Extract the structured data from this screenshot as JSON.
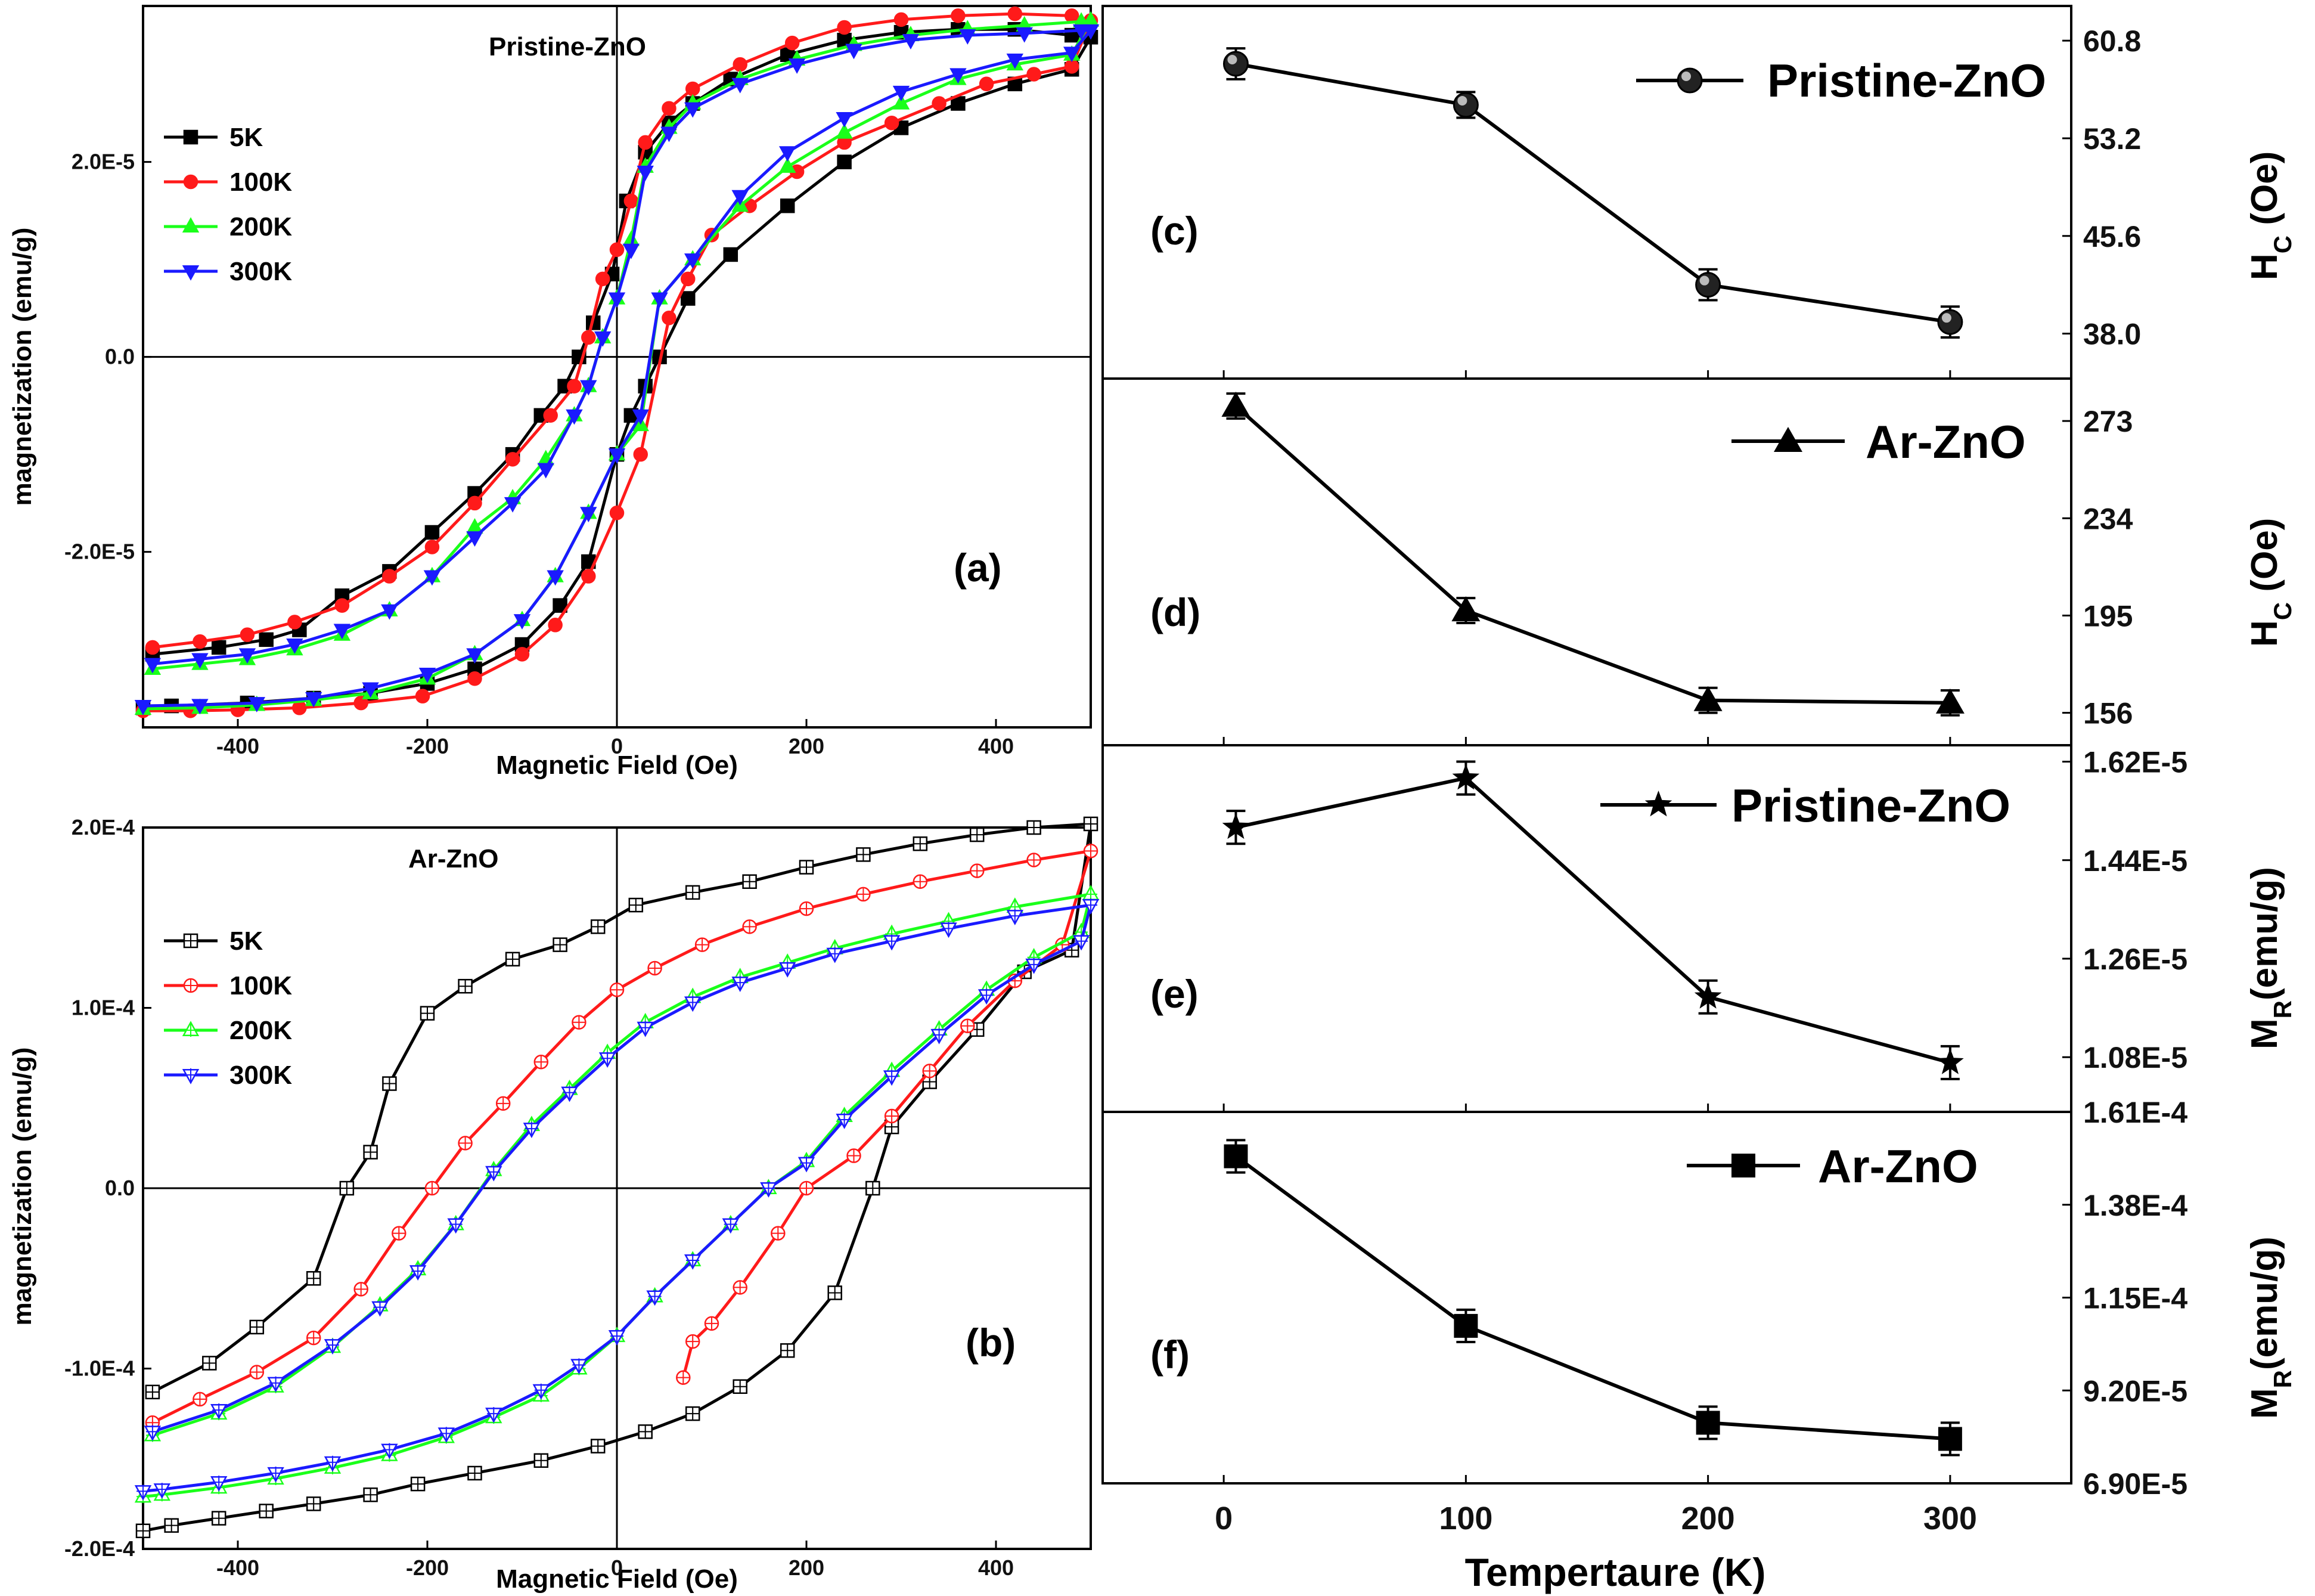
{
  "chart_data": [
    {
      "id": "a",
      "type": "line",
      "panel_label": "(a)",
      "title": "Pristine-ZnO",
      "xlabel": "Magnetic Field (Oe)",
      "ylabel": "magnetization (emu/g)",
      "xlim": [
        -500,
        500
      ],
      "ylim": [
        -3.8e-05,
        3.6e-05
      ],
      "xticks": [
        -400,
        -200,
        0,
        200,
        400
      ],
      "xtick_labels": [
        "-400",
        "-200",
        "0",
        "200",
        "400"
      ],
      "yticks": [
        -2e-05,
        0,
        2e-05
      ],
      "ytick_labels": [
        "-2.0E-5",
        "0.0",
        "2.0E-5"
      ],
      "series": [
        {
          "name": "5K",
          "color": "#000000",
          "marker": "square",
          "x": [
            -490,
            -420,
            -370,
            -335,
            -290,
            -240,
            -195,
            -150,
            -110,
            -80,
            -55,
            -40,
            -25,
            -5,
            10,
            30,
            55,
            80,
            120,
            180,
            240,
            300,
            360,
            420,
            480,
            500,
            480,
            420,
            360,
            300,
            240,
            180,
            120,
            75,
            45,
            30,
            15,
            0,
            -30,
            -60,
            -100,
            -150,
            -200,
            -260,
            -320,
            -390,
            -470,
            -500
          ],
          "y": [
            -3.05e-05,
            -2.98e-05,
            -2.9e-05,
            -2.8e-05,
            -2.45e-05,
            -2.2e-05,
            -1.8e-05,
            -1.4e-05,
            -1e-05,
            -6e-06,
            -3e-06,
            0,
            3.5e-06,
            8.5e-06,
            1.6e-05,
            2.1e-05,
            2.4e-05,
            2.6e-05,
            2.85e-05,
            3.1e-05,
            3.25e-05,
            3.33e-05,
            3.36e-05,
            3.36e-05,
            3.3e-05,
            3.28e-05,
            2.95e-05,
            2.8e-05,
            2.6e-05,
            2.35e-05,
            2e-05,
            1.55e-05,
            1.05e-05,
            6e-06,
            0,
            -3e-06,
            -6e-06,
            -1e-05,
            -2.1e-05,
            -2.55e-05,
            -2.95e-05,
            -3.2e-05,
            -3.35e-05,
            -3.45e-05,
            -3.5e-05,
            -3.55e-05,
            -3.58e-05,
            -3.6e-05
          ]
        },
        {
          "name": "100K",
          "color": "#ff1a1a",
          "marker": "circle",
          "x": [
            -490,
            -440,
            -390,
            -340,
            -290,
            -240,
            -195,
            -150,
            -110,
            -70,
            -45,
            -30,
            -15,
            0,
            15,
            30,
            55,
            80,
            130,
            185,
            240,
            300,
            360,
            420,
            480,
            500,
            480,
            440,
            390,
            340,
            290,
            240,
            190,
            140,
            100,
            75,
            55,
            25,
            0,
            -30,
            -65,
            -100,
            -150,
            -205,
            -270,
            -335,
            -400,
            -450,
            -500
          ],
          "y": [
            -2.98e-05,
            -2.92e-05,
            -2.85e-05,
            -2.72e-05,
            -2.55e-05,
            -2.25e-05,
            -1.95e-05,
            -1.5e-05,
            -1.05e-05,
            -6e-06,
            -3e-06,
            2e-06,
            8e-06,
            1.1e-05,
            1.6e-05,
            2.2e-05,
            2.55e-05,
            2.75e-05,
            3e-05,
            3.22e-05,
            3.38e-05,
            3.46e-05,
            3.5e-05,
            3.52e-05,
            3.5e-05,
            3.45e-05,
            2.98e-05,
            2.9e-05,
            2.8e-05,
            2.6e-05,
            2.4e-05,
            2.2e-05,
            1.9e-05,
            1.55e-05,
            1.25e-05,
            8e-06,
            4e-06,
            -1e-05,
            -1.6e-05,
            -2.25e-05,
            -2.75e-05,
            -3.05e-05,
            -3.3e-05,
            -3.48e-05,
            -3.55e-05,
            -3.6e-05,
            -3.62e-05,
            -3.63e-05,
            -3.63e-05
          ]
        },
        {
          "name": "200K",
          "color": "#1aff1a",
          "marker": "triangle-up",
          "x": [
            -490,
            -440,
            -390,
            -340,
            -290,
            -240,
            -195,
            -150,
            -110,
            -75,
            -45,
            -30,
            -15,
            0,
            15,
            30,
            55,
            80,
            130,
            190,
            250,
            310,
            370,
            430,
            490,
            500,
            480,
            420,
            360,
            300,
            240,
            180,
            130,
            80,
            45,
            25,
            0,
            -30,
            -65,
            -100,
            -150,
            -200,
            -260,
            -320,
            -380,
            -440,
            -500
          ],
          "y": [
            -3.2e-05,
            -3.15e-05,
            -3.1e-05,
            -3e-05,
            -2.85e-05,
            -2.6e-05,
            -2.25e-05,
            -1.75e-05,
            -1.45e-05,
            -1.05e-05,
            -6e-06,
            -3e-06,
            2e-06,
            6e-06,
            1.2e-05,
            1.95e-05,
            2.35e-05,
            2.6e-05,
            2.85e-05,
            3.05e-05,
            3.2e-05,
            3.3e-05,
            3.36e-05,
            3.4e-05,
            3.44e-05,
            3.45e-05,
            3.1e-05,
            3e-05,
            2.85e-05,
            2.6e-05,
            2.3e-05,
            1.95e-05,
            1.55e-05,
            1e-05,
            6e-06,
            -7e-06,
            -1e-05,
            -1.6e-05,
            -2.25e-05,
            -2.7e-05,
            -3.05e-05,
            -3.3e-05,
            -3.45e-05,
            -3.52e-05,
            -3.57e-05,
            -3.6e-05,
            -3.61e-05
          ]
        },
        {
          "name": "300K",
          "color": "#1a1aff",
          "marker": "triangle-down",
          "x": [
            -490,
            -440,
            -390,
            -340,
            -290,
            -240,
            -195,
            -150,
            -110,
            -75,
            -45,
            -30,
            -15,
            0,
            15,
            30,
            55,
            80,
            130,
            190,
            250,
            310,
            370,
            430,
            490,
            500,
            480,
            420,
            360,
            300,
            240,
            180,
            130,
            80,
            45,
            25,
            0,
            -30,
            -65,
            -100,
            -150,
            -200,
            -260,
            -320,
            -380,
            -440,
            -500
          ],
          "y": [
            -3.15e-05,
            -3.1e-05,
            -3.05e-05,
            -2.95e-05,
            -2.8e-05,
            -2.6e-05,
            -2.25e-05,
            -1.85e-05,
            -1.5e-05,
            -1.15e-05,
            -6e-06,
            -3e-06,
            2e-06,
            6e-06,
            1.1e-05,
            1.9e-05,
            2.3e-05,
            2.55e-05,
            2.8e-05,
            3e-05,
            3.15e-05,
            3.25e-05,
            3.3e-05,
            3.32e-05,
            3.35e-05,
            3.35e-05,
            3.12e-05,
            3.05e-05,
            2.9e-05,
            2.72e-05,
            2.45e-05,
            2.1e-05,
            1.65e-05,
            1e-05,
            6e-06,
            -6e-06,
            -1e-05,
            -1.6e-05,
            -2.25e-05,
            -2.7e-05,
            -3.05e-05,
            -3.25e-05,
            -3.4e-05,
            -3.5e-05,
            -3.55e-05,
            -3.57e-05,
            -3.58e-05
          ]
        }
      ]
    },
    {
      "id": "b",
      "type": "line",
      "panel_label": "(b)",
      "title": "Ar-ZnO",
      "xlabel": "Magnetic Field (Oe)",
      "ylabel": "magnetization (emu/g)",
      "xlim": [
        -500,
        500
      ],
      "ylim": [
        -0.0002,
        0.0002
      ],
      "xticks": [
        -400,
        -200,
        0,
        200,
        400
      ],
      "xtick_labels": [
        "-400",
        "-200",
        "0",
        "200",
        "400"
      ],
      "yticks": [
        -0.0002,
        -0.0001,
        0,
        0.0001,
        0.0002
      ],
      "ytick_labels": [
        "-2.0E-4",
        "-1.0E-4",
        "0.0",
        "1.0E-4",
        "2.0E-4"
      ],
      "series": [
        {
          "name": "5K",
          "color": "#000000",
          "marker": "square-cross",
          "x": [
            -490,
            -430,
            -380,
            -320,
            -285,
            -260,
            -240,
            -200,
            -160,
            -110,
            -60,
            -20,
            20,
            80,
            140,
            200,
            260,
            320,
            380,
            440,
            500,
            480,
            430,
            380,
            330,
            290,
            270,
            230,
            180,
            130,
            80,
            30,
            -20,
            -80,
            -150,
            -210,
            -260,
            -320,
            -370,
            -420,
            -470,
            -500
          ],
          "y": [
            -0.000113,
            -9.7e-05,
            -7.7e-05,
            -5e-05,
            0,
            2e-05,
            5.8e-05,
            9.7e-05,
            0.000112,
            0.000127,
            0.000135,
            0.000145,
            0.000157,
            0.000164,
            0.00017,
            0.000178,
            0.000185,
            0.000191,
            0.000196,
            0.0002,
            0.000202,
            0.000132,
            0.00012,
            8.8e-05,
            5.9e-05,
            3.4e-05,
            0,
            -5.8e-05,
            -9e-05,
            -0.00011,
            -0.000125,
            -0.000135,
            -0.000143,
            -0.000151,
            -0.000158,
            -0.000164,
            -0.00017,
            -0.000175,
            -0.000179,
            -0.000183,
            -0.000187,
            -0.00019
          ]
        },
        {
          "name": "100K",
          "color": "#ff1a1a",
          "marker": "circle-cross",
          "x": [
            -490,
            -440,
            -380,
            -320,
            -270,
            -230,
            -195,
            -160,
            -120,
            -80,
            -40,
            0,
            40,
            90,
            140,
            200,
            260,
            320,
            380,
            440,
            500,
            470,
            420,
            370,
            330,
            290,
            250,
            200,
            170,
            130,
            100,
            80,
            70
          ],
          "y": [
            -0.00013,
            -0.000117,
            -0.000102,
            -8.3e-05,
            -5.6e-05,
            -2.5e-05,
            0,
            2.5e-05,
            4.7e-05,
            7e-05,
            9.2e-05,
            0.00011,
            0.000122,
            0.000135,
            0.000145,
            0.000155,
            0.000163,
            0.00017,
            0.000176,
            0.000182,
            0.000187,
            0.000135,
            0.000115,
            9e-05,
            6.5e-05,
            4e-05,
            1.8e-05,
            0,
            -2.5e-05,
            -5.5e-05,
            -7.5e-05,
            -8.5e-05,
            -0.000105
          ]
        },
        {
          "name": "200K",
          "color": "#1aff1a",
          "marker": "triangle-up-cross",
          "x": [
            -490,
            -420,
            -360,
            -300,
            -250,
            -210,
            -170,
            -130,
            -90,
            -50,
            -10,
            30,
            80,
            130,
            180,
            230,
            290,
            350,
            420,
            500,
            490,
            440,
            390,
            340,
            290,
            240,
            200,
            160,
            120,
            80,
            40,
            0,
            -40,
            -80,
            -130,
            -180,
            -240,
            -300,
            -360,
            -420,
            -480,
            -500
          ],
          "y": [
            -0.000137,
            -0.000125,
            -0.00011,
            -8.8e-05,
            -6.5e-05,
            -4.5e-05,
            -2e-05,
            1e-05,
            3.5e-05,
            5.5e-05,
            7.5e-05,
            9.2e-05,
            0.000106,
            0.000117,
            0.000125,
            0.000133,
            0.000141,
            0.000148,
            0.000156,
            0.000163,
            0.000142,
            0.000128,
            0.00011,
            8.8e-05,
            6.5e-05,
            4e-05,
            1.5e-05,
            0,
            -2e-05,
            -4e-05,
            -6e-05,
            -8.2e-05,
            -0.0001,
            -0.000115,
            -0.000127,
            -0.000138,
            -0.000148,
            -0.000155,
            -0.000161,
            -0.000166,
            -0.00017,
            -0.000171
          ]
        },
        {
          "name": "300K",
          "color": "#1a1aff",
          "marker": "triangle-down-cross",
          "x": [
            -490,
            -420,
            -360,
            -300,
            -250,
            -210,
            -170,
            -130,
            -90,
            -50,
            -10,
            30,
            80,
            130,
            180,
            230,
            290,
            350,
            420,
            500,
            490,
            440,
            390,
            340,
            290,
            240,
            200,
            160,
            120,
            80,
            40,
            0,
            -40,
            -80,
            -130,
            -180,
            -240,
            -300,
            -360,
            -420,
            -480,
            -500
          ],
          "y": [
            -0.000135,
            -0.000123,
            -0.000108,
            -8.7e-05,
            -6.6e-05,
            -4.6e-05,
            -2e-05,
            9e-06,
            3.3e-05,
            5.3e-05,
            7.2e-05,
            8.9e-05,
            0.000103,
            0.000114,
            0.000122,
            0.00013,
            0.000137,
            0.000144,
            0.000151,
            0.000157,
            0.000137,
            0.000124,
            0.000107,
            8.5e-05,
            6.2e-05,
            3.8e-05,
            1.4e-05,
            0,
            -2e-05,
            -4e-05,
            -6e-05,
            -8.2e-05,
            -9.8e-05,
            -0.000112,
            -0.000125,
            -0.000136,
            -0.000145,
            -0.000152,
            -0.000158,
            -0.000163,
            -0.000167,
            -0.000168
          ]
        }
      ]
    },
    {
      "id": "c",
      "type": "line",
      "panel_label": "(c)",
      "legend": "Pristine-ZnO",
      "marker": "sphere",
      "ylabel_main": "H",
      "ylabel_sub": "C",
      "ylabel_unit": " (Oe)",
      "xlim": [
        -50,
        350
      ],
      "ylim": [
        34.5,
        63.5
      ],
      "yticks": [
        38.0,
        45.6,
        53.2,
        60.8
      ],
      "ytick_labels": [
        "38.0",
        "45.6",
        "53.2",
        "60.8"
      ],
      "x": [
        5,
        100,
        200,
        300
      ],
      "y": [
        59.0,
        55.8,
        41.8,
        38.9
      ],
      "yerr": [
        1.2,
        1.0,
        1.2,
        1.2
      ]
    },
    {
      "id": "d",
      "type": "line",
      "panel_label": "(d)",
      "legend": "Ar-ZnO",
      "marker": "triangle",
      "ylabel_main": "H",
      "ylabel_sub": "C",
      "ylabel_unit": " (Oe)",
      "xlim": [
        -50,
        350
      ],
      "ylim": [
        143,
        290
      ],
      "yticks": [
        156,
        195,
        234,
        273
      ],
      "ytick_labels": [
        "156",
        "195",
        "234",
        "273"
      ],
      "x": [
        5,
        100,
        200,
        300
      ],
      "y": [
        279,
        197,
        161,
        160
      ],
      "yerr": [
        5,
        5,
        5,
        5
      ]
    },
    {
      "id": "e",
      "type": "line",
      "panel_label": "(e)",
      "legend": "Pristine-ZnO",
      "marker": "star",
      "ylabel_main": "M",
      "ylabel_sub": "R",
      "ylabel_unit": "(emu/g)",
      "xlim": [
        -50,
        350
      ],
      "ylim": [
        9.8e-06,
        1.65e-05
      ],
      "yticks": [
        1.08e-05,
        1.26e-05,
        1.44e-05,
        1.62e-05
      ],
      "ytick_labels": [
        "1.08E-5",
        "1.26E-5",
        "1.44E-5",
        "1.62E-5"
      ],
      "x": [
        5,
        100,
        200,
        300
      ],
      "y": [
        1.5e-05,
        1.59e-05,
        1.19e-05,
        1.07e-05
      ],
      "yerr": [
        3e-07,
        3e-07,
        3e-07,
        3e-07
      ]
    },
    {
      "id": "f",
      "type": "line",
      "panel_label": "(f)",
      "legend": "Ar-ZnO",
      "marker": "square",
      "ylabel_main": "M",
      "ylabel_sub": "R",
      "ylabel_unit": "(emu/g)",
      "xlabel": "Tempertaure (K)",
      "xlim": [
        -50,
        350
      ],
      "xticks": [
        0,
        100,
        200,
        300
      ],
      "xtick_labels": [
        "0",
        "100",
        "200",
        "300"
      ],
      "ylim": [
        6.9e-05,
        0.000161
      ],
      "yticks": [
        6.9e-05,
        9.2e-05,
        0.000115,
        0.000138,
        0.000161
      ],
      "ytick_labels": [
        "6.90E-5",
        "9.20E-5",
        "1.15E-4",
        "1.38E-4",
        "1.61E-4"
      ],
      "x": [
        5,
        100,
        200,
        300
      ],
      "y": [
        0.00015,
        0.000108,
        8.4e-05,
        8e-05
      ],
      "yerr": [
        4e-06,
        4e-06,
        4e-06,
        4e-06
      ]
    }
  ]
}
